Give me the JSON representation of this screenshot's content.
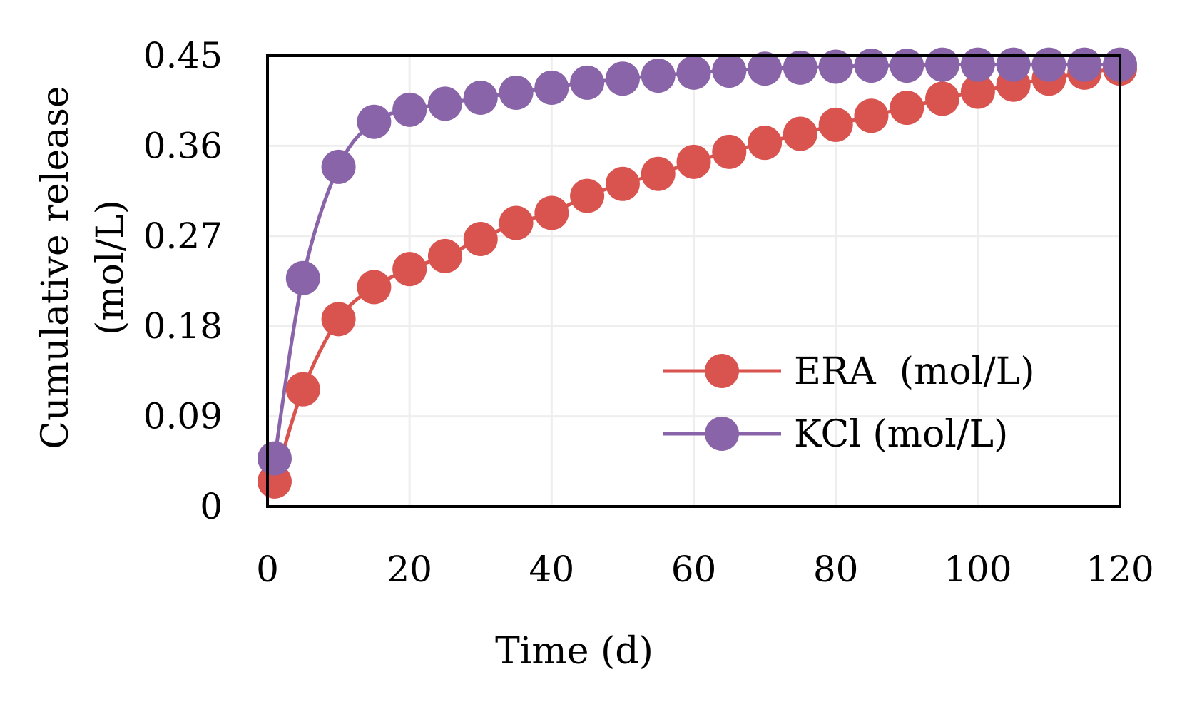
{
  "chart_data": {
    "type": "line",
    "title": "",
    "xlabel": "Time (d)",
    "ylabel_line1": "Cumulative release",
    "ylabel_line2": "(mol/L)",
    "xlim": [
      0,
      120
    ],
    "ylim": [
      0,
      0.45
    ],
    "x_ticks": [
      0,
      20,
      40,
      60,
      80,
      100,
      120
    ],
    "x_tick_labels": [
      "0",
      "20",
      "40",
      "60",
      "80",
      "100",
      "120"
    ],
    "y_ticks": [
      0,
      0.09,
      0.18,
      0.27,
      0.36,
      0.45
    ],
    "y_tick_labels": [
      "0",
      "0.09",
      "0.18",
      "0.27",
      "0.36",
      "0.45"
    ],
    "grid": true,
    "legend_position": "bottom-right",
    "x": [
      1,
      5,
      10,
      15,
      20,
      25,
      30,
      35,
      40,
      45,
      50,
      55,
      60,
      65,
      70,
      75,
      80,
      85,
      90,
      95,
      100,
      105,
      110,
      115,
      120
    ],
    "series": [
      {
        "name": "ERA  (mol/L)",
        "color": "#d9534f",
        "values": [
          0.025,
          0.117,
          0.187,
          0.219,
          0.237,
          0.25,
          0.267,
          0.283,
          0.293,
          0.31,
          0.322,
          0.332,
          0.344,
          0.354,
          0.363,
          0.372,
          0.381,
          0.39,
          0.398,
          0.407,
          0.414,
          0.421,
          0.427,
          0.433,
          0.437
        ]
      },
      {
        "name": "KCl (mol/L)",
        "color": "#8a64a8",
        "values": [
          0.048,
          0.228,
          0.339,
          0.384,
          0.396,
          0.402,
          0.408,
          0.413,
          0.418,
          0.423,
          0.427,
          0.43,
          0.433,
          0.435,
          0.437,
          0.438,
          0.439,
          0.44,
          0.44,
          0.441,
          0.441,
          0.441,
          0.441,
          0.441,
          0.441
        ]
      }
    ]
  }
}
